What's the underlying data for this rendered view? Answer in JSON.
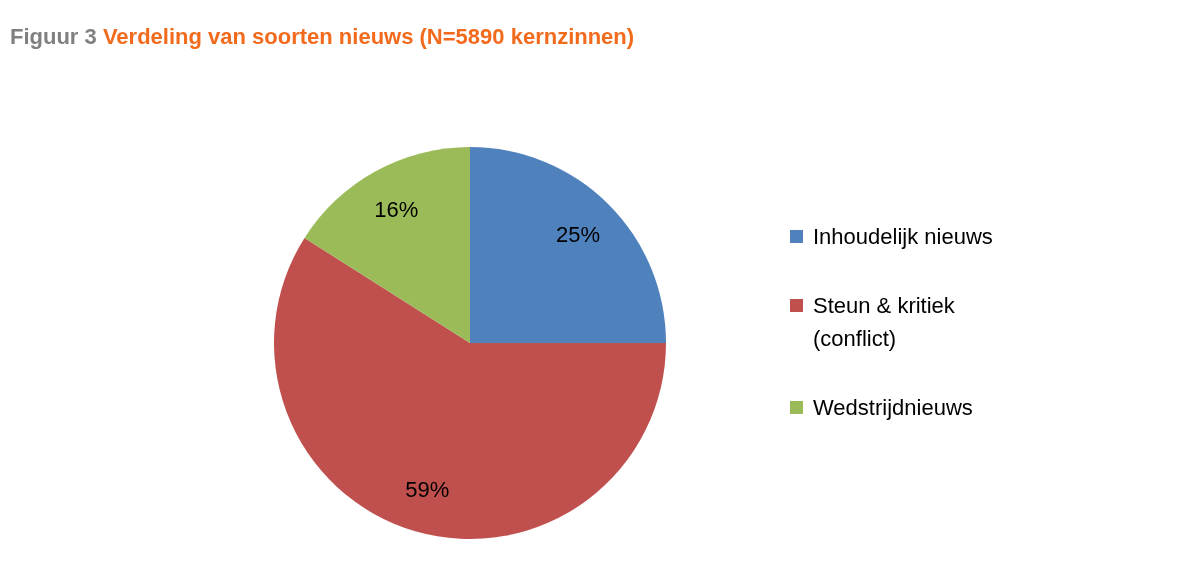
{
  "chart_data": {
    "type": "pie",
    "title": "Figuur 3",
    "subtitle": "Verdeling van soorten nieuws (N=5890 kernzinnen)",
    "categories": [
      "Inhoudelijk nieuws",
      "Steun & kritiek (conflict)",
      "Wedstrijdnieuws"
    ],
    "values": [
      25,
      59,
      16
    ],
    "colors": [
      "#4f81bd",
      "#c0504d",
      "#9bbb59"
    ],
    "value_labels": [
      "25%",
      "59%",
      "16%"
    ],
    "legend": "right"
  }
}
